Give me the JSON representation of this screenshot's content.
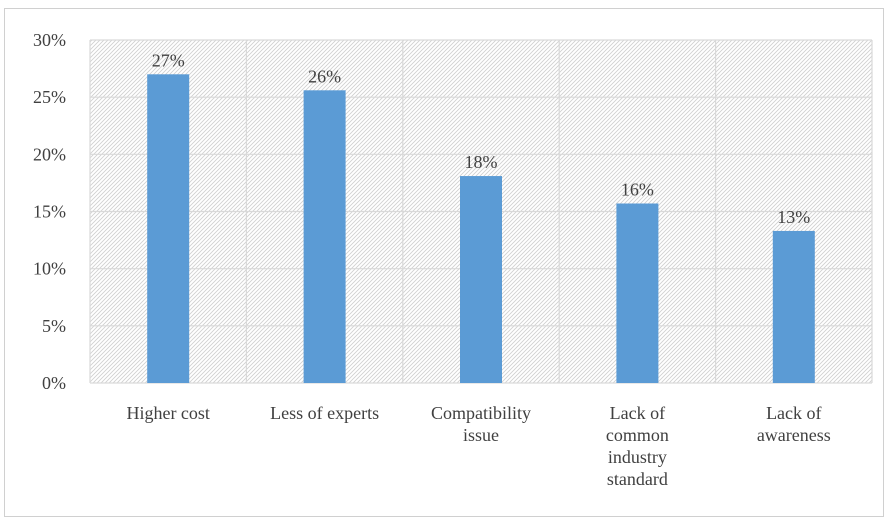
{
  "chart_data": {
    "type": "bar",
    "title": "",
    "xlabel": "",
    "ylabel": "",
    "categories": [
      [
        "Higher cost"
      ],
      [
        "Less of experts"
      ],
      [
        "Compatibility",
        "issue"
      ],
      [
        "Lack of",
        "common",
        "industry",
        "standard"
      ],
      [
        "Lack of",
        "awareness"
      ]
    ],
    "values": [
      27,
      25.6,
      18.1,
      15.7,
      13.3
    ],
    "data_labels": [
      "27%",
      "26%",
      "18%",
      "16%",
      "13%"
    ],
    "y_ticks": [
      "0%",
      "5%",
      "10%",
      "15%",
      "20%",
      "25%",
      "30%"
    ],
    "ylim": [
      0,
      30
    ],
    "grid": true,
    "bar_color": "#5b9bd5",
    "grid_color": "#d9d9d9",
    "plot_background": "hatched"
  }
}
